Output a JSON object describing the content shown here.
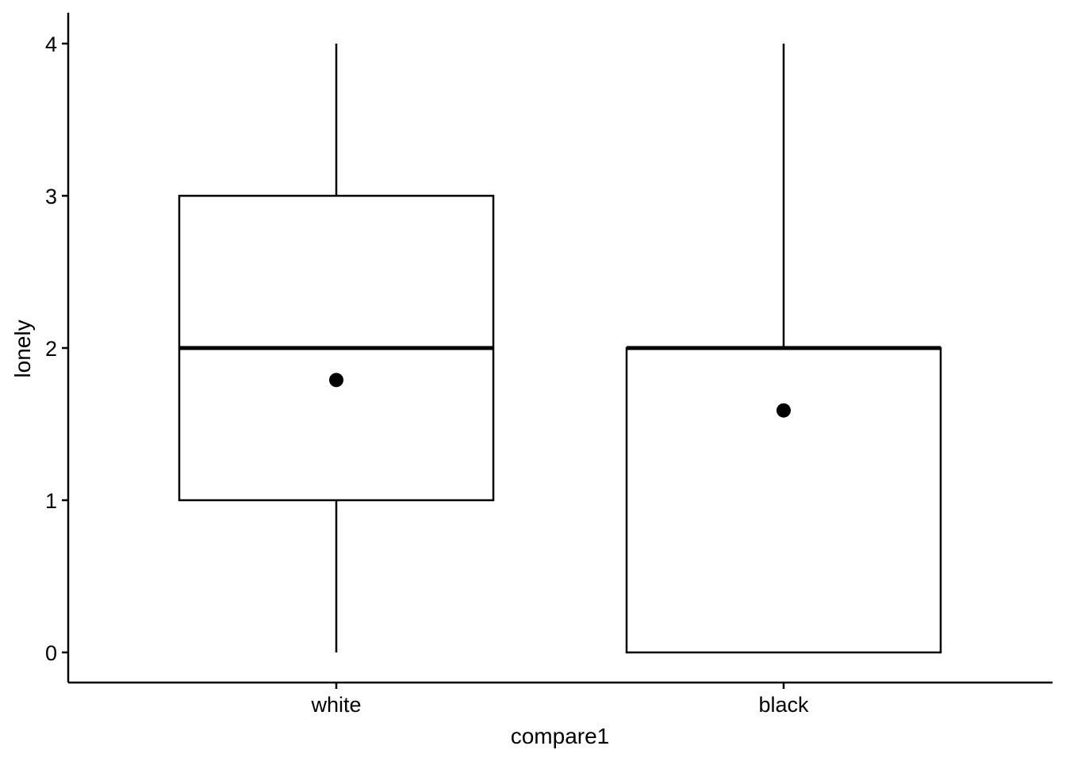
{
  "chart_data": {
    "type": "box",
    "xlabel": "compare1",
    "ylabel": "lonely",
    "categories": [
      "white",
      "black"
    ],
    "boxes": [
      {
        "category": "white",
        "lower_whisker": 0,
        "q1": 1,
        "median": 2,
        "q3": 3,
        "upper_whisker": 4,
        "mean": 1.79
      },
      {
        "category": "black",
        "lower_whisker": 0,
        "q1": 0,
        "median": 2,
        "q3": 2,
        "upper_whisker": 4,
        "mean": 1.59
      }
    ],
    "yticks": [
      0,
      1,
      2,
      3,
      4
    ],
    "ylim": [
      -0.2,
      4.2
    ],
    "grid": false,
    "legend": "none",
    "colors": {
      "line": "#000000",
      "box_fill": "#ffffff",
      "mean_point": "#000000"
    }
  }
}
